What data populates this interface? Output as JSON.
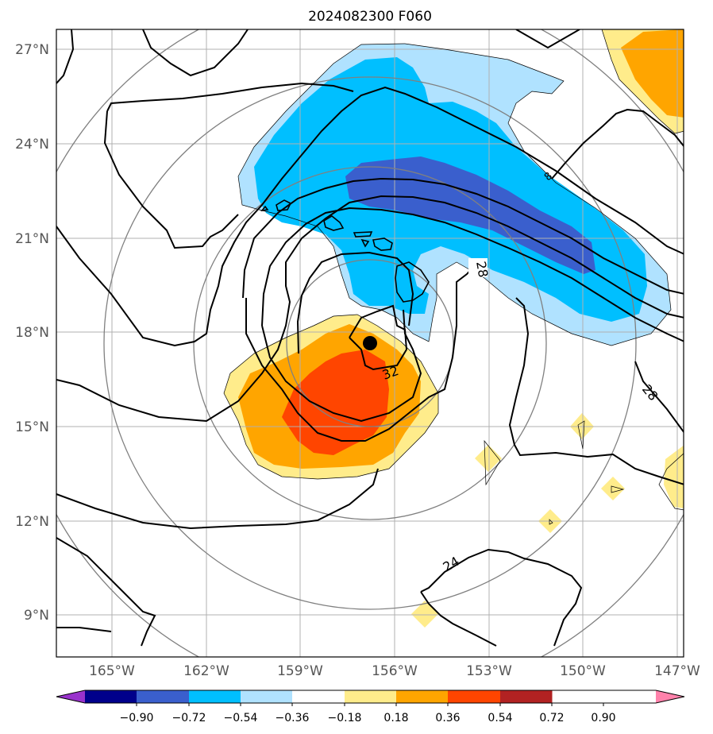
{
  "title": "2024082300 F060",
  "lat_labels": [
    "27°N",
    "24°N",
    "21°N",
    "18°N",
    "15°N",
    "12°N",
    "9°N"
  ],
  "lon_labels": [
    "165°W",
    "162°W",
    "159°W",
    "156°W",
    "153°W",
    "150°W",
    "147°W"
  ],
  "contour_labels": [
    "28",
    "32",
    "28",
    "24",
    "8"
  ],
  "colorbar": {
    "ticks": [
      "−0.90",
      "−0.72",
      "−0.54",
      "−0.36",
      "−0.18",
      "0.18",
      "0.36",
      "0.54",
      "0.72",
      "0.90"
    ],
    "colors": [
      "#9932cc",
      "#00008b",
      "#3a5fcd",
      "#00bfff",
      "#b0e2ff",
      "#ffffff",
      "#ffec8b",
      "#ffa500",
      "#ff4500",
      "#b22222",
      "#ff82ab"
    ]
  },
  "storm_marker": {
    "lat": 17.7,
    "lon": -156.8
  },
  "colors": {
    "dark_blue": "#3a5fcd",
    "mid_blue": "#00bfff",
    "light_blue": "#b0e2ff",
    "yellow": "#ffec8b",
    "orange": "#ffa500",
    "red_orange": "#ff4500",
    "grid": "#b0b0b0",
    "circle": "#808080"
  }
}
